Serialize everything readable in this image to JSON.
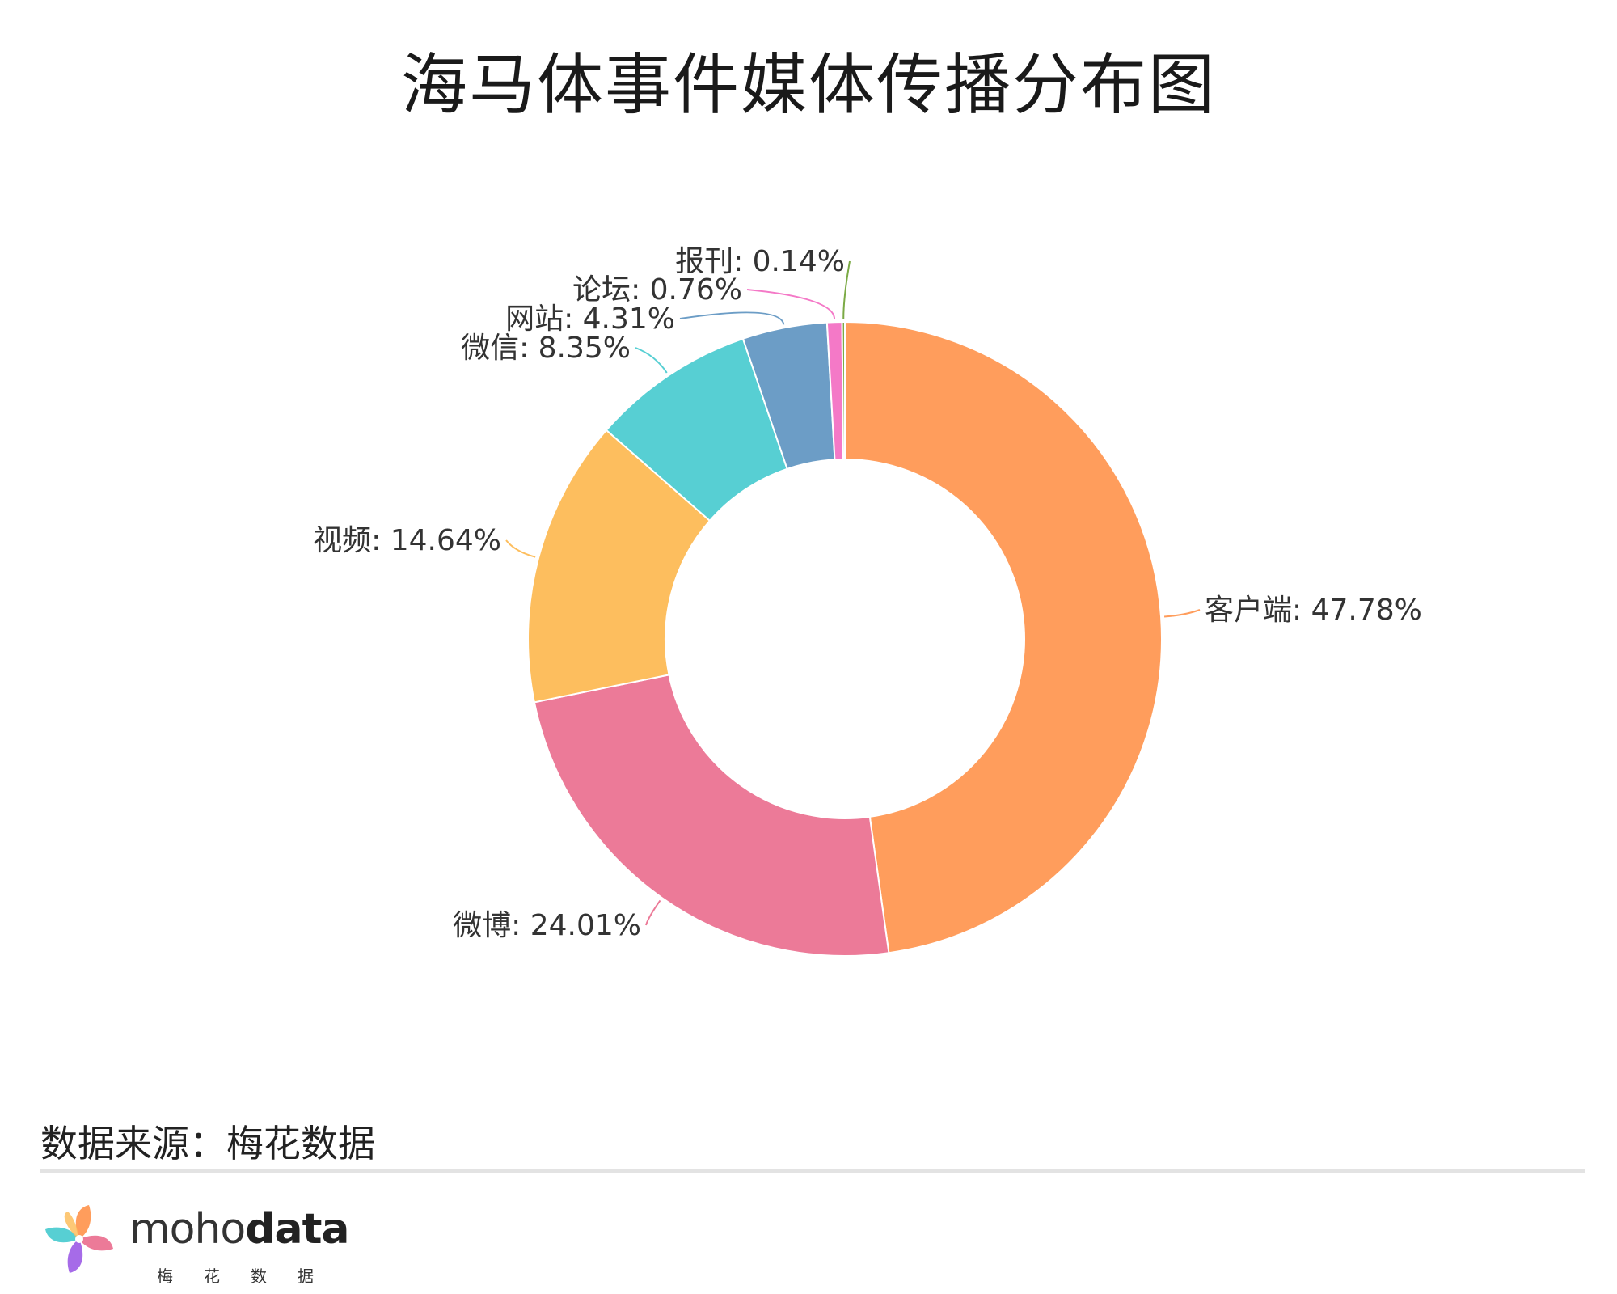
{
  "title": "海马体事件媒体传播分布图",
  "source": "数据来源：梅花数据",
  "brand": {
    "name_light": "moho",
    "name_bold": "data",
    "subtitle": "梅花数据",
    "logo_icon": "pinwheel-logo-icon"
  },
  "chart_data": {
    "type": "pie",
    "donut": true,
    "slices": [
      {
        "label": "客户端",
        "value": 47.78,
        "display": "客户端: 47.78%",
        "color": "#FF9D5C"
      },
      {
        "label": "微博",
        "value": 24.01,
        "display": "微博: 24.01%",
        "color": "#EC7A98"
      },
      {
        "label": "视频",
        "value": 14.64,
        "display": "视频: 14.64%",
        "color": "#FDBE5E"
      },
      {
        "label": "微信",
        "value": 8.35,
        "display": "微信: 8.35%",
        "color": "#57CFD3"
      },
      {
        "label": "网站",
        "value": 4.31,
        "display": "网站: 4.31%",
        "color": "#6C9DC6"
      },
      {
        "label": "论坛",
        "value": 0.76,
        "display": "论坛: 0.76%",
        "color": "#F479C7"
      },
      {
        "label": "报刊",
        "value": 0.14,
        "display": "报刊: 0.14%",
        "color": "#7BAA45"
      }
    ]
  }
}
